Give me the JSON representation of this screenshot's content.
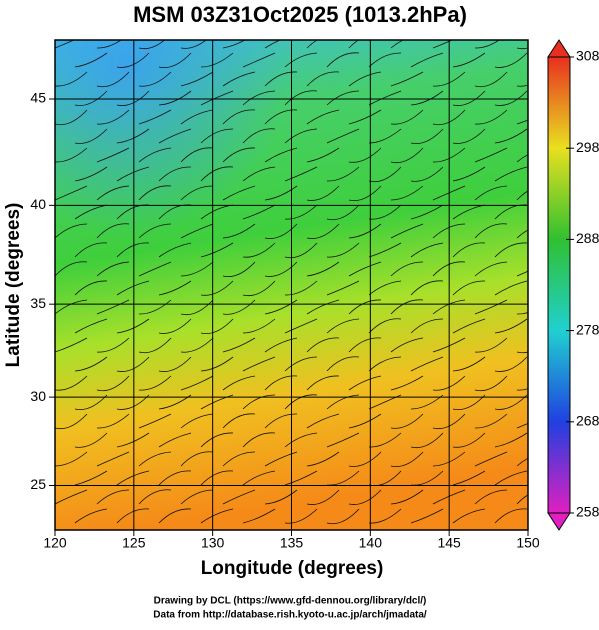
{
  "chart_data": {
    "type": "map",
    "title": "MSM 03Z31Oct2025 (1013.2hPa)",
    "x_label": "Longitude (degrees)",
    "y_label": "Latitude  (degrees)",
    "projection": "mercator",
    "xlim": [
      120,
      150
    ],
    "xticks": [
      120,
      125,
      130,
      135,
      140,
      145,
      150
    ],
    "ylim": [
      22.4,
      47.6
    ],
    "yticks": [
      25,
      30,
      35,
      40,
      45
    ],
    "grid": true,
    "colorbar": {
      "lim": [
        258,
        308
      ],
      "ticks": [
        258,
        268,
        278,
        288,
        298,
        308
      ]
    },
    "footer": [
      "Drawing by DCL (https://www.gfd-dennou.org/library/dcl/)",
      "Data from http://database.rish.kyoto-u.ac.jp/arch/jmadata/"
    ]
  }
}
